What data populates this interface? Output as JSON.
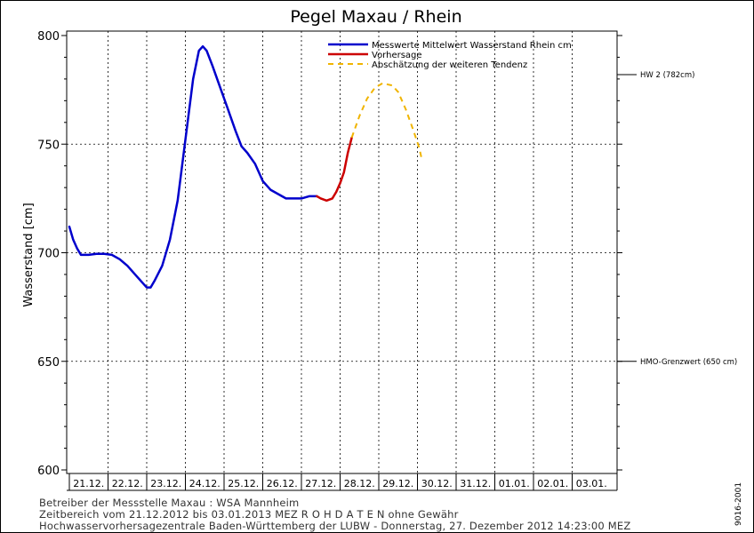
{
  "chart_data": {
    "type": "line",
    "title": "Pegel Maxau / Rhein",
    "ylabel": "Wasserstand [cm]",
    "xlabel": "",
    "ylim": [
      600,
      800
    ],
    "yticks": [
      600,
      650,
      700,
      750,
      800
    ],
    "x_categories": [
      "21.12.",
      "22.12.",
      "23.12.",
      "24.12.",
      "25.12.",
      "26.12.",
      "27.12.",
      "28.12.",
      "29.12.",
      "30.12.",
      "31.12.",
      "01.01.",
      "02.01.",
      "03.01."
    ],
    "grid": true,
    "legend_position": "top-right",
    "colors": {
      "measured": "#0000cc",
      "forecast": "#cc0000",
      "tendency": "#f0b400"
    },
    "series": [
      {
        "name": "Messwerte Mittelwert Wasserstand Rhein cm",
        "style": "solid",
        "points": [
          [
            0.0,
            712
          ],
          [
            0.1,
            706
          ],
          [
            0.2,
            702
          ],
          [
            0.3,
            699
          ],
          [
            0.5,
            699
          ],
          [
            0.7,
            699.5
          ],
          [
            0.9,
            699.5
          ],
          [
            1.1,
            699
          ],
          [
            1.3,
            697
          ],
          [
            1.5,
            694
          ],
          [
            1.7,
            690
          ],
          [
            1.9,
            686
          ],
          [
            2.0,
            684
          ],
          [
            2.1,
            684
          ],
          [
            2.2,
            687
          ],
          [
            2.4,
            694
          ],
          [
            2.6,
            706
          ],
          [
            2.8,
            724
          ],
          [
            3.0,
            752
          ],
          [
            3.2,
            780
          ],
          [
            3.35,
            793
          ],
          [
            3.45,
            795
          ],
          [
            3.55,
            793
          ],
          [
            3.7,
            786
          ],
          [
            3.9,
            776
          ],
          [
            4.1,
            766
          ],
          [
            4.3,
            756
          ],
          [
            4.45,
            749
          ],
          [
            4.6,
            746
          ],
          [
            4.8,
            741
          ],
          [
            5.0,
            733
          ],
          [
            5.2,
            729
          ],
          [
            5.4,
            727
          ],
          [
            5.6,
            725
          ],
          [
            5.8,
            725
          ],
          [
            6.0,
            725
          ],
          [
            6.2,
            726
          ],
          [
            6.4,
            726
          ]
        ]
      },
      {
        "name": "Vorhersage",
        "style": "solid",
        "points": [
          [
            6.4,
            726
          ],
          [
            6.5,
            725
          ],
          [
            6.65,
            724
          ],
          [
            6.8,
            725
          ],
          [
            6.9,
            728
          ],
          [
            7.0,
            732
          ],
          [
            7.1,
            737
          ],
          [
            7.2,
            746
          ],
          [
            7.3,
            753
          ]
        ]
      },
      {
        "name": "Abschätzung der weiteren Tendenz",
        "style": "dashed",
        "points": [
          [
            7.3,
            753
          ],
          [
            7.5,
            763
          ],
          [
            7.7,
            771
          ],
          [
            7.9,
            776
          ],
          [
            8.1,
            778
          ],
          [
            8.35,
            777
          ],
          [
            8.5,
            774
          ],
          [
            8.7,
            766
          ],
          [
            8.9,
            756
          ],
          [
            9.05,
            748
          ],
          [
            9.1,
            744
          ]
        ]
      }
    ],
    "reference_lines": [
      {
        "label": "HW 2 (782cm)",
        "value": 782
      },
      {
        "label": "HMO-Grenzwert (650 cm)",
        "value": 650
      }
    ]
  },
  "footer": {
    "line1": "Betreiber der Messstelle Maxau : WSA Mannheim",
    "line2": "Zeitbereich vom 21.12.2012 bis 03.01.2013    MEZ     R O H D A T E N ohne Gewähr",
    "line3": "Hochwasservorhersagezentrale Baden-Württemberg der LUBW - Donnerstag, 27. Dezember 2012 14:23:00 MEZ",
    "code": "9016-2001"
  }
}
